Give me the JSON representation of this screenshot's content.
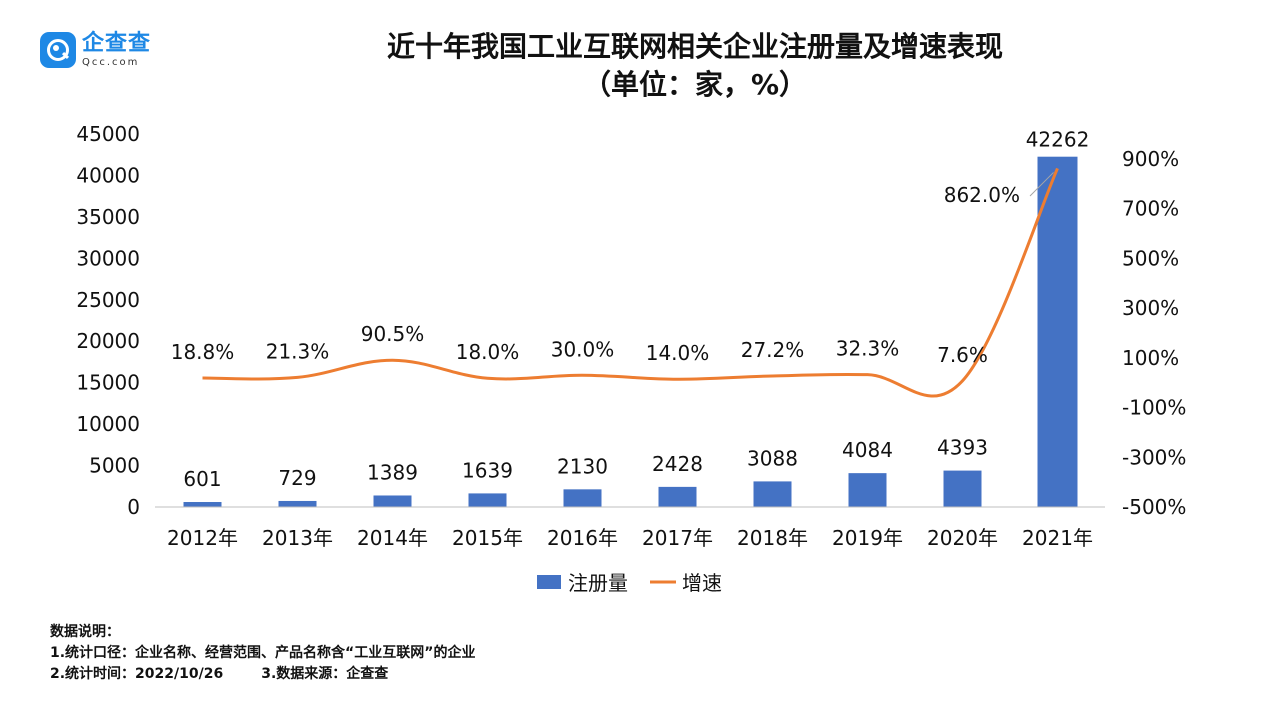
{
  "brand": {
    "name_cn": "企查查",
    "name_en": "Qcc.com"
  },
  "title_line1": "近十年我国工业互联网相关企业注册量及增速表现",
  "title_line2": "（单位：家，%）",
  "chart_data": {
    "type": "bar",
    "categories": [
      "2012年",
      "2013年",
      "2014年",
      "2015年",
      "2016年",
      "2017年",
      "2018年",
      "2019年",
      "2020年",
      "2021年"
    ],
    "series": [
      {
        "name": "注册量",
        "type": "bar",
        "axis": "left",
        "color": "#4472c4",
        "values": [
          601,
          729,
          1389,
          1639,
          2130,
          2428,
          3088,
          4084,
          4393,
          42262
        ],
        "labels": [
          "601",
          "729",
          "1389",
          "1639",
          "2130",
          "2428",
          "3088",
          "4084",
          "4393",
          "42262"
        ]
      },
      {
        "name": "增速",
        "type": "line",
        "axis": "right",
        "color": "#ed7d31",
        "values": [
          18.8,
          21.3,
          90.5,
          18.0,
          30.0,
          14.0,
          27.2,
          32.3,
          7.6,
          862.0
        ],
        "labels": [
          "18.8%",
          "21.3%",
          "90.5%",
          "18.0%",
          "30.0%",
          "14.0%",
          "27.2%",
          "32.3%",
          "7.6%",
          "862.0%"
        ]
      }
    ],
    "y_left": {
      "min": 0,
      "max": 45000,
      "ticks": [
        "0",
        "5000",
        "10000",
        "15000",
        "20000",
        "25000",
        "30000",
        "35000",
        "40000",
        "45000"
      ]
    },
    "y_right": {
      "min": -500,
      "max": 900,
      "ticks": [
        "-500%",
        "-300%",
        "-100%",
        "100%",
        "300%",
        "500%",
        "700%",
        "900%"
      ]
    },
    "legend": "bottom",
    "grid": false
  },
  "notes": {
    "heading": "数据说明：",
    "line1": "1.统计口径：企业名称、经营范围、产品名称含“工业互联网”的企业",
    "line2a": "2.统计时间：2022/10/26",
    "line2b": "3.数据来源：企查查"
  }
}
